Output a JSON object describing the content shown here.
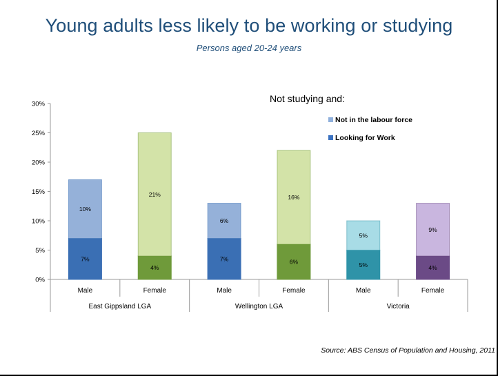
{
  "title": "Young adults less likely to be working or studying",
  "subtitle": "Persons aged 20-24 years",
  "source": "Source: ABS Census of Population and Housing, 2011",
  "chart_data": {
    "type": "bar",
    "stacked": true,
    "legend_title": "Not studying and:",
    "legend": [
      "Not in the labour force",
      "Looking for Work"
    ],
    "legend_placement": "top-right",
    "ylim": [
      0,
      30
    ],
    "yticks": [
      "0%",
      "5%",
      "10%",
      "15%",
      "20%",
      "25%",
      "30%"
    ],
    "ytick_values": [
      0,
      5,
      10,
      15,
      20,
      25,
      30
    ],
    "groups": [
      "East Gippsland LGA",
      "Wellington LGA",
      "Victoria"
    ],
    "categories": [
      "Male",
      "Female",
      "Male",
      "Female",
      "Male",
      "Female"
    ],
    "series": [
      {
        "name": "Looking for Work",
        "values": [
          7,
          4,
          7,
          6,
          5,
          4
        ],
        "labels": [
          "7%",
          "4%",
          "7%",
          "6%",
          "5%",
          "4%"
        ]
      },
      {
        "name": "Not in the labour force",
        "values": [
          10,
          21,
          6,
          16,
          5,
          9
        ],
        "labels": [
          "10%",
          "21%",
          "6%",
          "16%",
          "5%",
          "9%"
        ]
      }
    ],
    "colors": {
      "looking": [
        "#3a6fb4",
        "#6f9a3a",
        "#3a6fb4",
        "#6f9a3a",
        "#2f93a8",
        "#6b4a86"
      ],
      "not_in_lf": [
        "#95b1d9",
        "#d3e3a8",
        "#95b1d9",
        "#d3e3a8",
        "#a8dce6",
        "#c9b6df"
      ],
      "legend": [
        "#8fb0dc",
        "#3b72c1"
      ]
    },
    "grid": false
  }
}
